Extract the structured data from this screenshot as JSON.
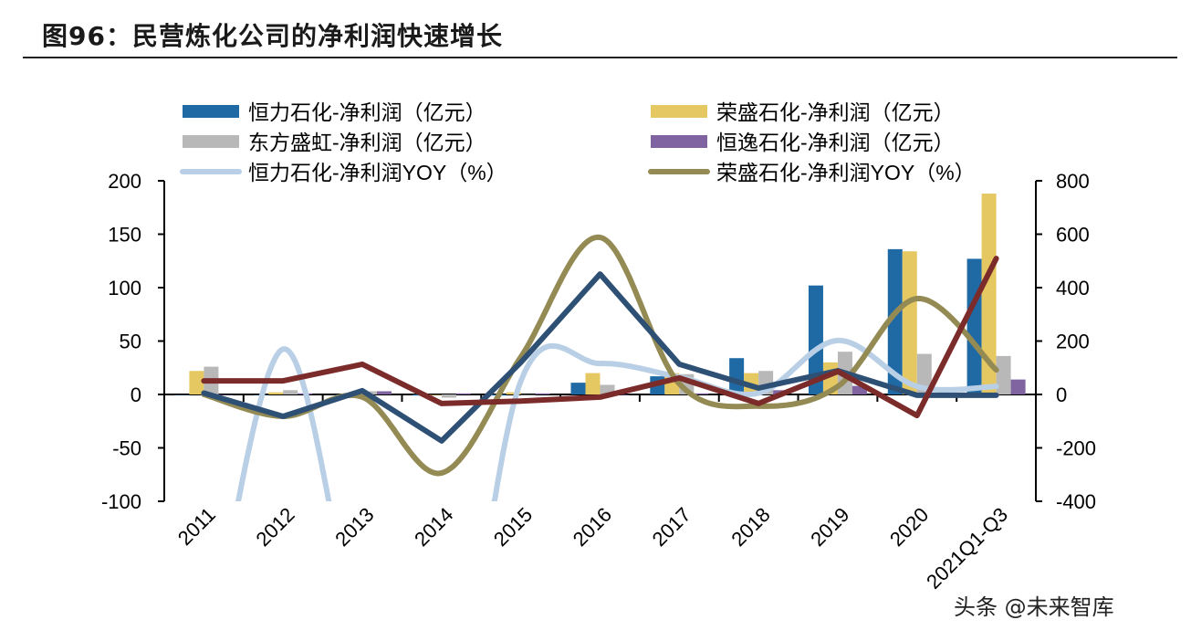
{
  "title": "图96：民营炼化公司的净利润快速增长",
  "watermark": "头条 @未来智库",
  "chart_data": {
    "type": "bar+line",
    "title": "",
    "categories": [
      "2011",
      "2012",
      "2013",
      "2014",
      "2015",
      "2016",
      "2017",
      "2018",
      "2019",
      "2020",
      "2021Q1-Q3"
    ],
    "left_axis": {
      "label": "",
      "ylim": [
        -100,
        200
      ],
      "ticks": [
        200,
        150,
        100,
        50,
        0,
        -50,
        -100
      ]
    },
    "right_axis": {
      "label": "",
      "ylim": [
        -400,
        800
      ],
      "ticks": [
        800,
        600,
        400,
        200,
        0,
        -200,
        -400
      ]
    },
    "grid": false,
    "legend_position": "top",
    "bar_series": [
      {
        "name": "恒力石化-净利润（亿元）",
        "color": "#1f6aa5",
        "values": [
          0,
          0,
          0,
          -1,
          -1,
          11,
          17,
          34,
          102,
          136,
          127
        ]
      },
      {
        "name": "荣盛石化-净利润（亿元）",
        "color": "#e6c862",
        "values": [
          22,
          2,
          1,
          0,
          2,
          20,
          20,
          20,
          30,
          134,
          188
        ]
      },
      {
        "name": "东方盛虹-净利润（亿元）",
        "color": "#b8b8b8",
        "values": [
          26,
          4,
          3,
          -3,
          0,
          9,
          19,
          22,
          40,
          38,
          36
        ]
      },
      {
        "name": "恒逸石化-净利润（亿元）",
        "color": "#8064a2",
        "values": [
          0,
          1,
          3,
          1,
          1,
          0,
          1,
          4,
          8,
          1,
          14
        ]
      }
    ],
    "line_series": [
      {
        "name": "恒力石化-净利润YOY（%）",
        "color": "#b9cfe6",
        "smooth": true,
        "values": [
          -1100,
          170,
          -950,
          -1400,
          50,
          116,
          65,
          5,
          202,
          30,
          30
        ]
      },
      {
        "name": "荣盛石化-净利润YOY（%）",
        "color": "#948a54",
        "smooth": true,
        "values": [
          0,
          -82,
          -10,
          -294,
          140,
          588,
          40,
          -44,
          30,
          359,
          92
        ]
      },
      {
        "name": "",
        "color": "#2e5075",
        "smooth": false,
        "values": [
          5,
          -82,
          14,
          -174,
          120,
          451,
          113,
          24,
          89,
          -3,
          -3
        ]
      },
      {
        "name": "",
        "color": "#7b2c2a",
        "smooth": false,
        "values": [
          51,
          51,
          113,
          -34,
          -25,
          -10,
          62,
          -34,
          86,
          -79,
          509
        ]
      }
    ]
  }
}
